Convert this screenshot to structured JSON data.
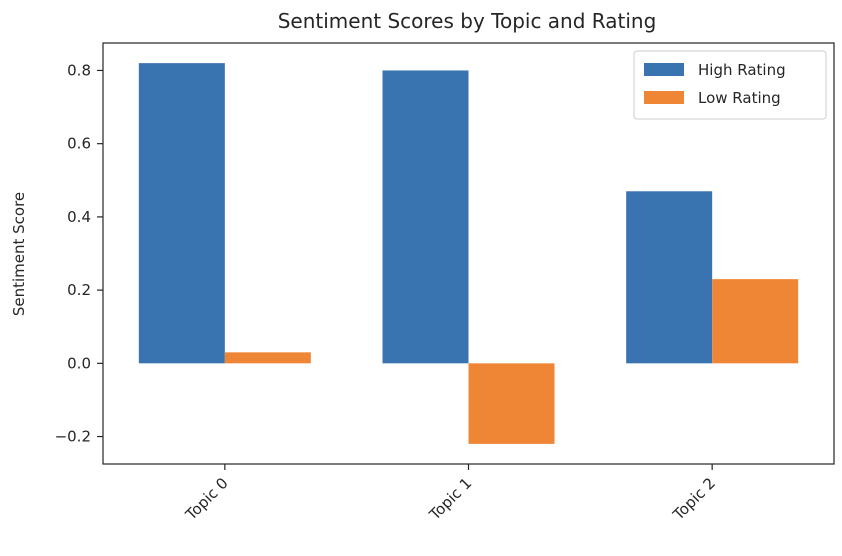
{
  "chart_data": {
    "type": "bar",
    "title": "Sentiment Scores by Topic and Rating",
    "xlabel": "",
    "ylabel": "Sentiment Score",
    "categories": [
      "Topic 0",
      "Topic 1",
      "Topic 2"
    ],
    "series": [
      {
        "name": "High Rating",
        "color": "#3a74b0",
        "values": [
          0.82,
          0.8,
          0.47
        ]
      },
      {
        "name": "Low Rating",
        "color": "#ef8636",
        "values": [
          0.03,
          -0.22,
          0.23
        ]
      }
    ],
    "ylim": [
      -0.275,
      0.875
    ],
    "yticks": [
      -0.2,
      0.0,
      0.2,
      0.4,
      0.6,
      0.8
    ],
    "ytick_labels": [
      "−0.2",
      "0.0",
      "0.2",
      "0.4",
      "0.6",
      "0.8"
    ],
    "xtick_rotation": 45,
    "grid": false,
    "legend_position": "top-right"
  }
}
